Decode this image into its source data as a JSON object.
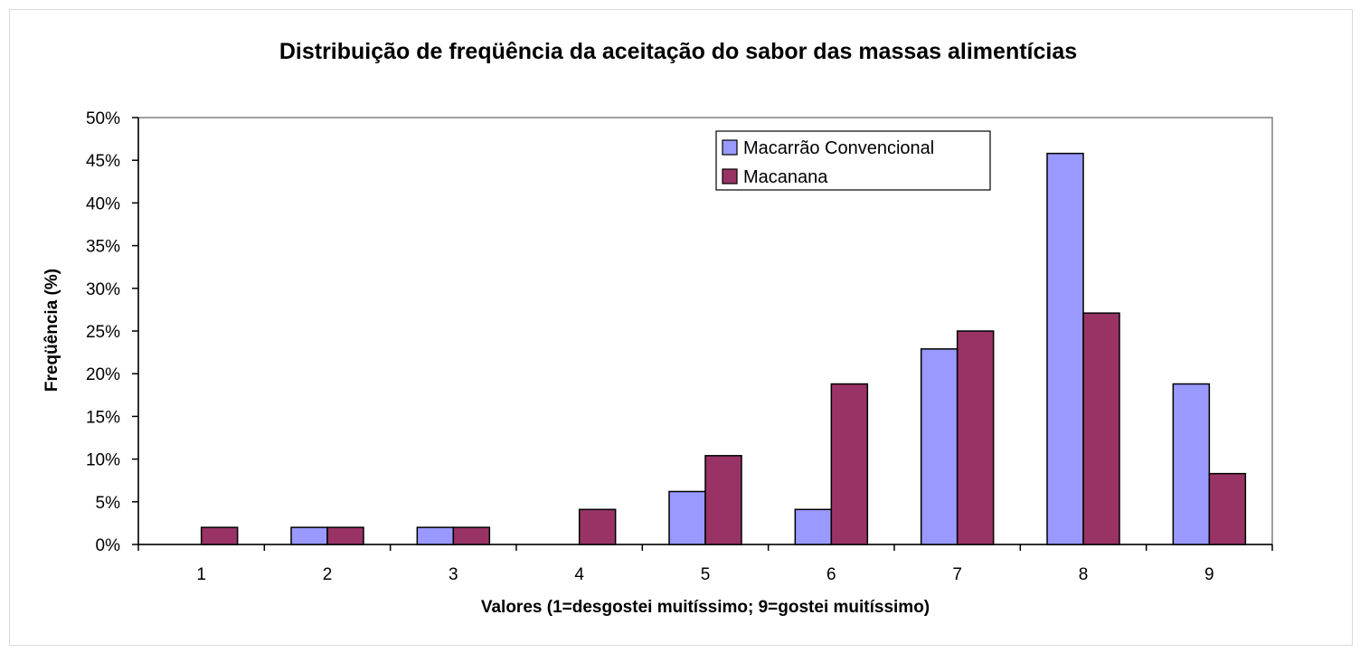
{
  "chart_data": {
    "type": "bar",
    "title": "Distribuição de freqüência da aceitação do sabor das massas alimentícias",
    "xlabel": "Valores (1=desgostei muitíssimo; 9=gostei muitíssimo)",
    "ylabel": "Freqüência (%)",
    "categories": [
      "1",
      "2",
      "3",
      "4",
      "5",
      "6",
      "7",
      "8",
      "9"
    ],
    "series": [
      {
        "name": "Macarrão Convencional",
        "color": "#9999ff",
        "values": [
          0,
          2,
          2,
          0,
          6.2,
          4.1,
          22.9,
          45.8,
          18.8
        ]
      },
      {
        "name": "Macanana",
        "color": "#993366",
        "values": [
          2,
          2,
          2,
          4.1,
          10.4,
          18.8,
          25,
          27.1,
          8.3
        ]
      }
    ],
    "ylim": [
      0,
      50
    ],
    "ytick_step": 5,
    "ytick_labels": [
      "0%",
      "5%",
      "10%",
      "15%",
      "20%",
      "25%",
      "30%",
      "35%",
      "40%",
      "45%",
      "50%"
    ],
    "legend_position": "top-right",
    "grid": false
  }
}
